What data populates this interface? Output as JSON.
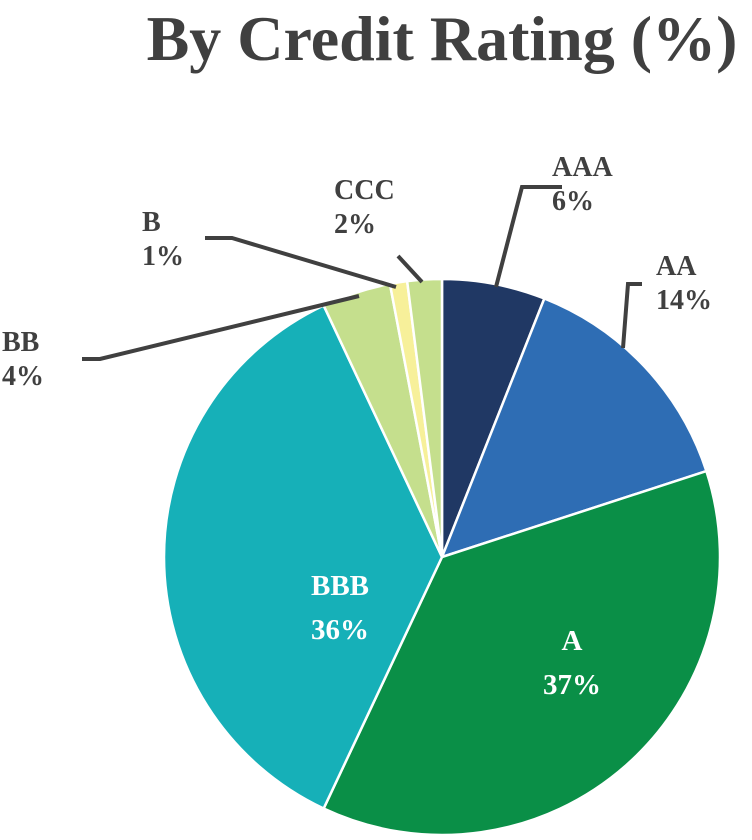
{
  "chart_data": {
    "type": "pie",
    "title": "By Credit Rating (%)",
    "categories": [
      "AAA",
      "AA",
      "A",
      "BBB",
      "BB",
      "B",
      "CCC"
    ],
    "values": [
      6,
      14,
      37,
      36,
      4,
      1,
      2
    ],
    "value_labels": [
      "6%",
      "14%",
      "37%",
      "36%",
      "4%",
      "1%",
      "2%"
    ],
    "colors": [
      "#203864",
      "#2e6db4",
      "#0a8f47",
      "#16b0b8",
      "#c5df8d",
      "#f7f09a",
      "#c5df8d"
    ],
    "legend": "none"
  }
}
